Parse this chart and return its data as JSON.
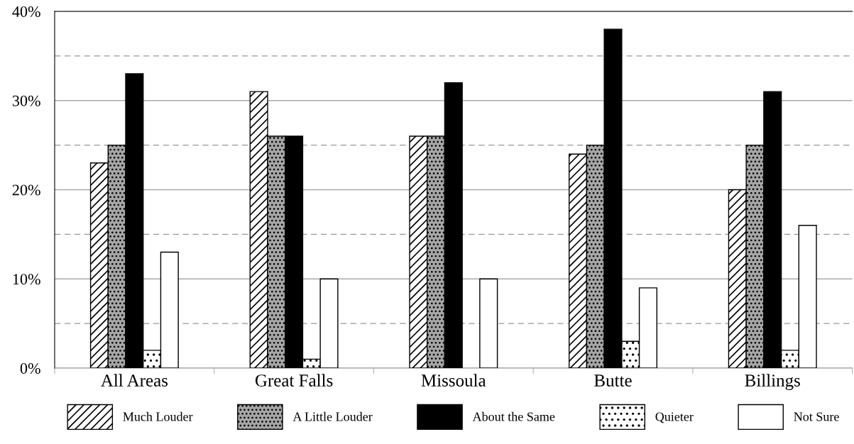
{
  "chart_data": {
    "type": "bar",
    "categories": [
      "All Areas",
      "Great Falls",
      "Missoula",
      "Butte",
      "Billings"
    ],
    "series": [
      {
        "name": "Much Louder",
        "color": "#ffffff",
        "values": [
          23,
          31,
          26,
          24,
          20
        ]
      },
      {
        "name": "A Little Louder",
        "color": "#a6a6a6",
        "values": [
          25,
          26,
          26,
          25,
          25
        ]
      },
      {
        "name": "About the Same",
        "color": "#000000",
        "values": [
          33,
          26,
          32,
          38,
          31
        ]
      },
      {
        "name": "Quieter",
        "color": "#ffffff",
        "values": [
          2,
          1,
          0,
          3,
          2
        ]
      },
      {
        "name": "Not Sure",
        "color": "#ffffff",
        "values": [
          13,
          10,
          10,
          9,
          16
        ]
      }
    ],
    "ylim": [
      0,
      40
    ],
    "yticks": [
      {
        "value": 0,
        "label": "0%"
      },
      {
        "value": 10,
        "label": "10%"
      },
      {
        "value": 20,
        "label": "20%"
      },
      {
        "value": 30,
        "label": "30%"
      },
      {
        "value": 40,
        "label": "40%"
      }
    ],
    "ref_lines": [
      {
        "axis": "y",
        "value": 5,
        "color": "#999999",
        "line_style": "dashed"
      },
      {
        "axis": "y",
        "value": 15,
        "color": "#999999",
        "line_style": "dashed"
      },
      {
        "axis": "y",
        "value": 25,
        "color": "#999999",
        "line_style": "dashed"
      },
      {
        "axis": "y",
        "value": 35,
        "color": "#999999",
        "line_style": "dashed"
      }
    ],
    "grid": "y",
    "legend": "bottom"
  }
}
